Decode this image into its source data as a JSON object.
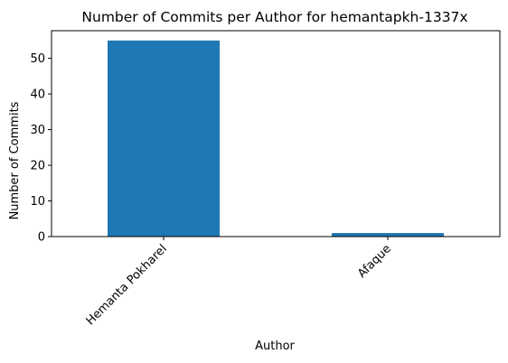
{
  "chart_data": {
    "type": "bar",
    "title": "Number of Commits per Author for hemantapkh-1337x",
    "xlabel": "Author",
    "ylabel": "Number of Commits",
    "categories": [
      "Hemanta Pokharel",
      "Afaque"
    ],
    "values": [
      55,
      1
    ],
    "yticks": [
      0,
      10,
      20,
      30,
      40,
      50
    ],
    "ylim": [
      0,
      57.75
    ],
    "bar_color": "#1f77b4",
    "grid": false,
    "legend": "none"
  }
}
